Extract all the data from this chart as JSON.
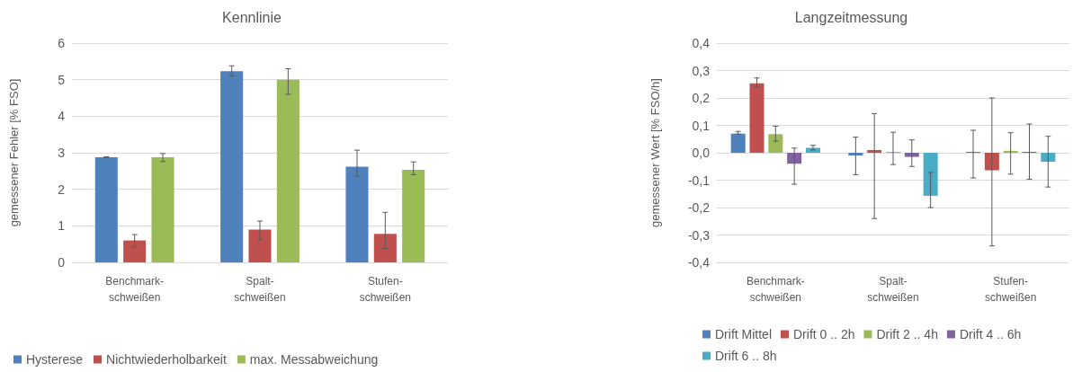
{
  "chart_data": [
    {
      "type": "bar",
      "title": "Kennlinie",
      "ylabel": "gemessener Fehler [% FSO]",
      "categories": [
        "Benchmark-\nschweißen",
        "Spalt-\nschweißen",
        "Stufen-\nschweißen"
      ],
      "series": [
        {
          "name": "Hysterese",
          "color": "#4f81bd",
          "values": [
            2.88,
            5.23,
            2.62
          ],
          "errors": [
            [
              2.87,
              2.89
            ],
            [
              5.1,
              5.38
            ],
            [
              2.36,
              3.07
            ]
          ]
        },
        {
          "name": "Nichtwiederholbarkeit",
          "color": "#c0504d",
          "values": [
            0.6,
            0.9,
            0.78
          ],
          "errors": [
            [
              0.42,
              0.76
            ],
            [
              0.62,
              1.13
            ],
            [
              0.38,
              1.37
            ]
          ]
        },
        {
          "name": "max. Messabweichung",
          "color": "#9bbb59",
          "values": [
            2.88,
            5.0,
            2.53
          ],
          "errors": [
            [
              2.76,
              2.98
            ],
            [
              4.6,
              5.3
            ],
            [
              2.4,
              2.75
            ]
          ]
        }
      ],
      "ylim": [
        0,
        6
      ],
      "yticks": [
        0,
        1,
        2,
        3,
        4,
        5,
        6
      ],
      "grid": "y",
      "legend": "bottom left"
    },
    {
      "type": "bar",
      "title": "Langzeitmessung",
      "ylabel": "gemessener Wert [% FSO/h]",
      "categories": [
        "Benchmark-\nschweißen",
        "Spalt-\nschweißen",
        "Stufen-\nschweißen"
      ],
      "series": [
        {
          "name": "Drift Mittel",
          "color": "#4f81bd",
          "values": [
            0.07,
            -0.01,
            0.0
          ],
          "errors": [
            [
              0.068,
              0.078
            ],
            [
              -0.08,
              0.057
            ],
            [
              -0.092,
              0.082
            ]
          ]
        },
        {
          "name": "Drift 0 .. 2h",
          "color": "#c0504d",
          "values": [
            0.253,
            0.01,
            -0.064
          ],
          "errors": [
            [
              0.24,
              0.273
            ],
            [
              -0.24,
              0.143
            ],
            [
              -0.34,
              0.2
            ]
          ]
        },
        {
          "name": "Drift 2 .. 4h",
          "color": "#9bbb59",
          "values": [
            0.068,
            0.0,
            0.007
          ],
          "errors": [
            [
              0.042,
              0.097
            ],
            [
              -0.043,
              0.075
            ],
            [
              -0.078,
              0.073
            ]
          ]
        },
        {
          "name": "Drift 4 .. 6h",
          "color": "#8064a2",
          "values": [
            -0.04,
            -0.015,
            0.003
          ],
          "errors": [
            [
              -0.115,
              0.017
            ],
            [
              -0.05,
              0.047
            ],
            [
              -0.097,
              0.105
            ]
          ]
        },
        {
          "name": "Drift 6 .. 8h",
          "color": "#4bacc6",
          "values": [
            0.018,
            -0.157,
            -0.033
          ],
          "errors": [
            [
              0.01,
              0.027
            ],
            [
              -0.2,
              -0.072
            ],
            [
              -0.125,
              0.06
            ]
          ]
        }
      ],
      "ylim": [
        -0.4,
        0.4
      ],
      "yticks": [
        {
          "value": -0.4,
          "label": "-0,4"
        },
        {
          "value": -0.3,
          "label": "-0,3"
        },
        {
          "value": -0.2,
          "label": "-0,2"
        },
        {
          "value": -0.1,
          "label": "-0,1"
        },
        {
          "value": 0,
          "label": "0,0"
        },
        {
          "value": 0.1,
          "label": "0,1"
        },
        {
          "value": 0.2,
          "label": "0,2"
        },
        {
          "value": 0.3,
          "label": "0,3"
        },
        {
          "value": 0.4,
          "label": "0,4"
        }
      ],
      "grid": "y",
      "legend": "bottom"
    }
  ]
}
